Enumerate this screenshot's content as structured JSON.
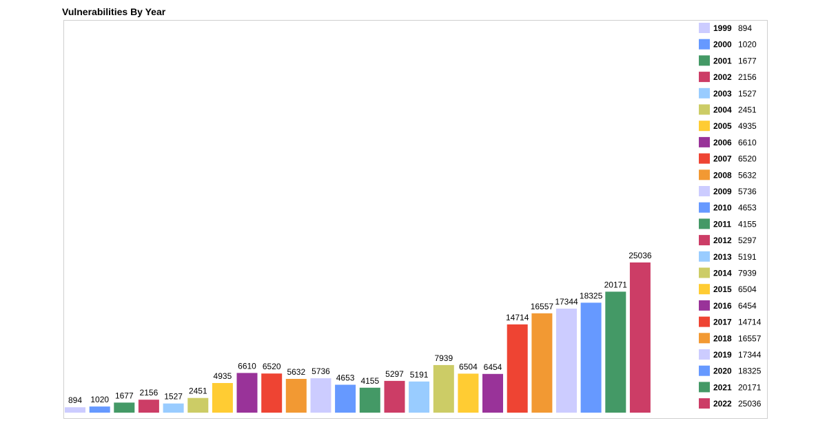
{
  "chart_data": {
    "type": "bar",
    "title": "Vulnerabilities By Year",
    "xlabel": "",
    "ylabel": "",
    "ylim": [
      0,
      25036
    ],
    "grid": false,
    "legend_placement": "right",
    "categories": [
      "1999",
      "2000",
      "2001",
      "2002",
      "2003",
      "2004",
      "2005",
      "2006",
      "2007",
      "2008",
      "2009",
      "2010",
      "2011",
      "2012",
      "2013",
      "2014",
      "2015",
      "2016",
      "2017",
      "2018",
      "2019",
      "2020",
      "2021",
      "2022"
    ],
    "values": [
      894,
      1020,
      1677,
      2156,
      1527,
      2451,
      4935,
      6610,
      6520,
      5632,
      5736,
      4653,
      4155,
      5297,
      5191,
      7939,
      6504,
      6454,
      14714,
      16557,
      17344,
      18325,
      20171,
      25036
    ],
    "colors": [
      "#ccccff",
      "#6699ff",
      "#449966",
      "#cc3d66",
      "#99ccff",
      "#cccc66",
      "#ffcc33",
      "#993399",
      "#ee4433",
      "#f29933",
      "#ccccff",
      "#6699ff",
      "#449966",
      "#cc3d66",
      "#99ccff",
      "#cccc66",
      "#ffcc33",
      "#993399",
      "#ee4433",
      "#f29933",
      "#ccccff",
      "#6699ff",
      "#449966",
      "#cc3d66"
    ]
  }
}
